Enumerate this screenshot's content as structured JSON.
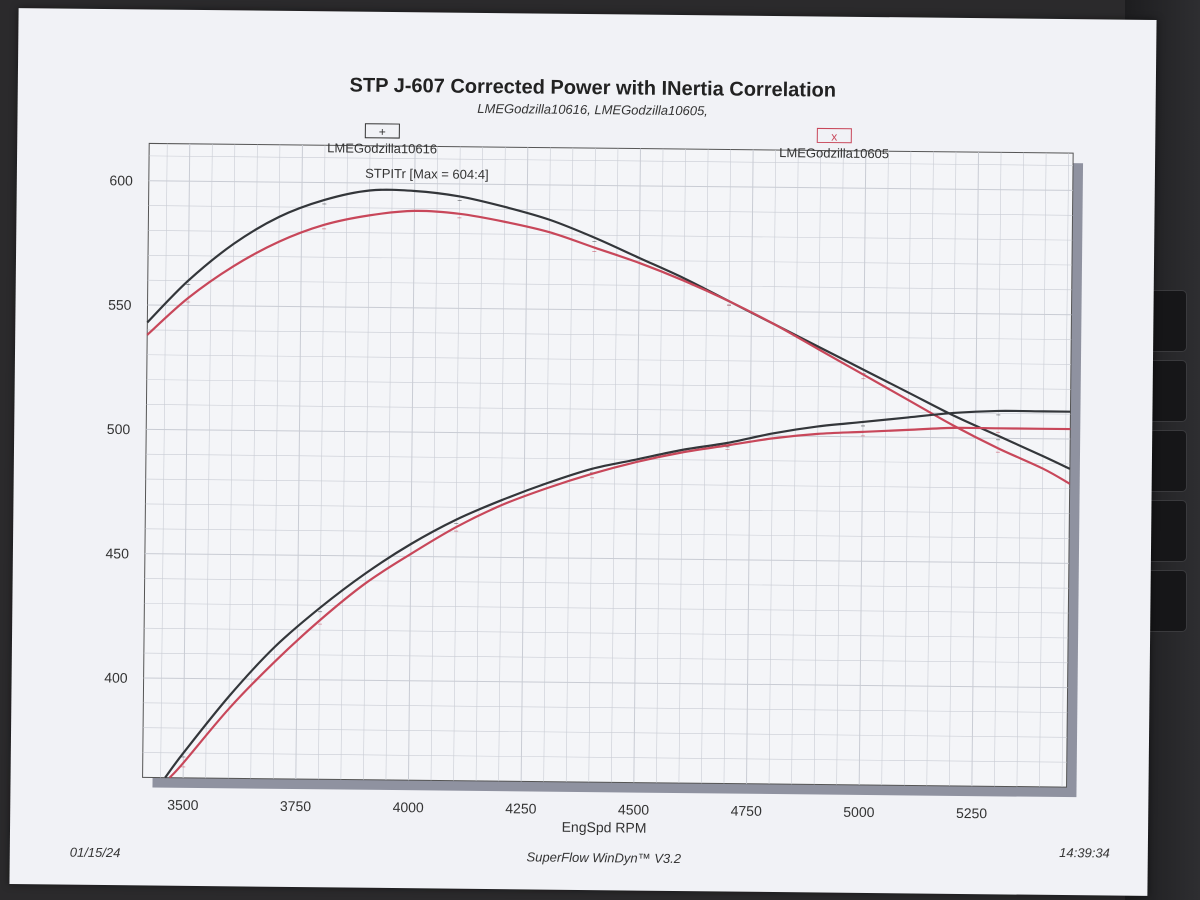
{
  "chart_data": {
    "type": "line",
    "title": "STP J-607 Corrected Power with INertia Correlation",
    "subtitle": "LMEGodzilla10616, LMEGodzilla10605,",
    "xlabel": "EngSpd RPM",
    "ylabel": "",
    "xlim": [
      3410,
      5460
    ],
    "ylim": [
      360,
      615
    ],
    "x_ticks": [
      3500,
      3750,
      4000,
      4250,
      4500,
      4750,
      5000,
      5250
    ],
    "y_ticks": [
      400,
      450,
      500,
      550,
      600
    ],
    "grid": true,
    "legend": [
      {
        "name": "LMEGodzilla10616",
        "marker": "+",
        "color": "#33363a",
        "position": "top-left"
      },
      {
        "name": "LMEGodzilla10605",
        "marker": "x",
        "color": "#c8475a",
        "position": "top-right"
      }
    ],
    "annotation": "STPITr [Max = 604:4]",
    "series": [
      {
        "name": "LMEGodzilla10616",
        "quantity": "torque",
        "color": "#33363a",
        "x": [
          3410,
          3500,
          3600,
          3700,
          3800,
          3900,
          4000,
          4100,
          4200,
          4300,
          4400,
          4500,
          4600,
          4700,
          4800,
          4900,
          5000,
          5100,
          5200,
          5300,
          5400,
          5460
        ],
        "y": [
          543,
          560,
          575,
          586,
          593,
          597,
          597,
          595,
          591,
          586,
          579,
          571,
          563,
          554,
          545,
          536,
          527,
          518,
          509,
          501,
          493,
          488
        ]
      },
      {
        "name": "LMEGodzilla10605",
        "quantity": "torque",
        "color": "#c8475a",
        "x": [
          3410,
          3500,
          3600,
          3700,
          3800,
          3900,
          4000,
          4100,
          4200,
          4300,
          4400,
          4500,
          4600,
          4700,
          4800,
          4900,
          5000,
          5100,
          5200,
          5300,
          5400,
          5460
        ],
        "y": [
          538,
          553,
          566,
          576,
          583,
          587,
          589,
          588,
          585,
          581,
          575,
          569,
          562,
          554,
          545,
          535,
          525,
          515,
          505,
          496,
          488,
          482
        ]
      },
      {
        "name": "LMEGodzilla10616",
        "quantity": "power",
        "color": "#33363a",
        "x": [
          3460,
          3500,
          3600,
          3700,
          3800,
          3900,
          4000,
          4100,
          4200,
          4300,
          4400,
          4500,
          4600,
          4700,
          4800,
          4900,
          5000,
          5100,
          5200,
          5300,
          5400,
          5460
        ],
        "y": [
          360,
          370,
          393,
          413,
          429,
          443,
          455,
          465,
          473,
          480,
          486,
          490,
          494,
          497,
          501,
          504,
          506,
          508,
          510,
          511,
          511,
          511
        ]
      },
      {
        "name": "LMEGodzilla10605",
        "quantity": "power",
        "color": "#c8475a",
        "x": [
          3470,
          3500,
          3600,
          3700,
          3800,
          3900,
          4000,
          4100,
          4200,
          4300,
          4400,
          4500,
          4600,
          4700,
          4800,
          4900,
          5000,
          5100,
          5200,
          5300,
          5400,
          5460
        ],
        "y": [
          360,
          366,
          388,
          407,
          424,
          439,
          451,
          462,
          471,
          478,
          484,
          489,
          493,
          496,
          499,
          501,
          502,
          503,
          504,
          504,
          504,
          504
        ]
      }
    ]
  },
  "footer": {
    "date": "01/15/24",
    "software": "SuperFlow WinDyn™ V3.2",
    "time": "14:39:34"
  },
  "colors": {
    "paper": "#f1f2f6",
    "grid": "#c9ccd4",
    "series_dark": "#33363a",
    "series_red": "#c8475a"
  }
}
